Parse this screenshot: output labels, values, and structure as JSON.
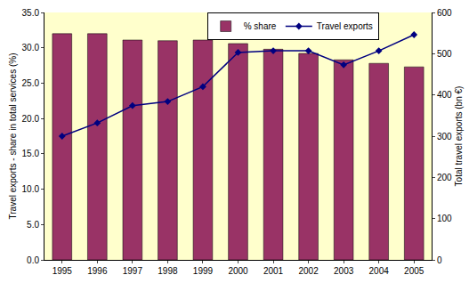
{
  "chart_data": {
    "type": "bar",
    "categories": [
      "1995",
      "1996",
      "1997",
      "1998",
      "1999",
      "2000",
      "2001",
      "2002",
      "2003",
      "2004",
      "2005"
    ],
    "series": [
      {
        "name": "% share",
        "type": "bar",
        "color": "#993366",
        "values": [
          32.0,
          32.0,
          31.1,
          31.0,
          31.1,
          30.6,
          29.8,
          29.2,
          28.3,
          27.8,
          27.3
        ]
      },
      {
        "name": "Travel exports",
        "type": "line",
        "axis": "y2",
        "color": "#000080",
        "marker": "diamond",
        "line_style": "solid",
        "values": [
          300,
          332,
          374,
          384,
          420,
          503,
          507,
          507,
          473,
          507,
          546
        ]
      }
    ],
    "y_label": "Travel exports - share in total services (%)",
    "y2_label": "Total travel exports (bn €)",
    "ylim": [
      0,
      35
    ],
    "yticks": [
      {
        "value": 0,
        "label": "0.0"
      },
      {
        "value": 5,
        "label": "5.0"
      },
      {
        "value": 10,
        "label": "10.0"
      },
      {
        "value": 15,
        "label": "15.0"
      },
      {
        "value": 20,
        "label": "20.0"
      },
      {
        "value": 25,
        "label": "25.0"
      },
      {
        "value": 30,
        "label": "30.0"
      },
      {
        "value": 35,
        "label": "35.0"
      }
    ],
    "y2lim": [
      0,
      600
    ],
    "y2ticks": [
      0,
      100,
      200,
      300,
      400,
      500,
      600
    ],
    "grid": false,
    "legend": "top"
  }
}
